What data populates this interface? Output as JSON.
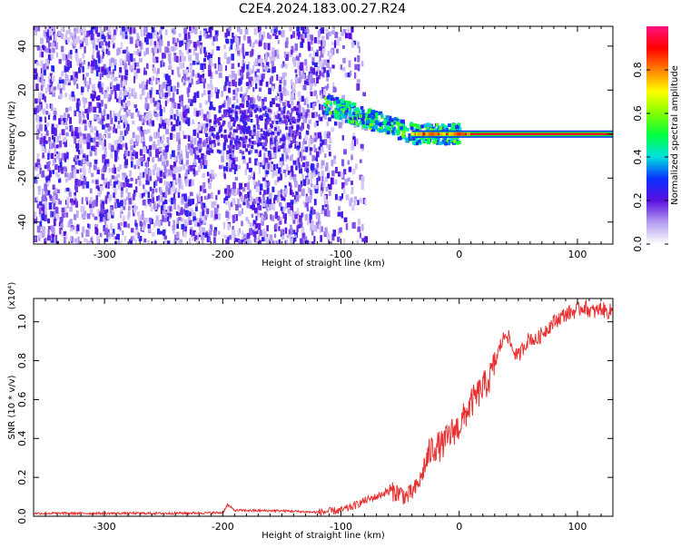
{
  "title": "C2E4.2024.183.00.27.R24",
  "chart_data": [
    {
      "type": "heatmap",
      "xlabel": "Height of straight line (km)",
      "ylabel": "Frequency (Hz)",
      "xlim": [
        -360,
        130
      ],
      "ylim": [
        -50,
        49
      ],
      "xticks": [
        -300,
        -200,
        -100,
        0,
        100
      ],
      "yticks": [
        -40,
        -20,
        0,
        20,
        40
      ],
      "colorbar": {
        "label": "Normalized spectral amplitude",
        "range": [
          0,
          1
        ],
        "ticks": [
          0.0,
          0.2,
          0.4,
          0.6,
          0.8
        ],
        "colors": [
          "#ffffff",
          "#b39cf0",
          "#5a10e0",
          "#0a30ff",
          "#00e0e0",
          "#00ff40",
          "#80ff00",
          "#ffff00",
          "#ff8000",
          "#ff0000",
          "#ff1080"
        ]
      },
      "features": {
        "noise_region_km": [
          -360,
          -90
        ],
        "strong_line_km": [
          -40,
          130
        ],
        "line_frequency_hz": 0,
        "transition_km": [
          -115,
          -40
        ]
      }
    },
    {
      "type": "line",
      "xlabel": "Height of straight line (km)",
      "ylabel": "SNR (10 * v/v)",
      "y_multiplier": "(x10⁴)",
      "xlim": [
        -360,
        130
      ],
      "ylim": [
        0,
        1.12
      ],
      "xticks": [
        -300,
        -200,
        -100,
        0,
        100
      ],
      "yticks": [
        0.0,
        0.2,
        0.4,
        0.6,
        0.8,
        1.0
      ],
      "line_color": "#e83030",
      "series": [
        {
          "x": [
            -360,
            -300,
            -250,
            -200,
            -196,
            -190,
            -150,
            -120,
            -100,
            -90,
            -80,
            -70,
            -60,
            -50,
            -45,
            -40,
            -36,
            -32,
            -28,
            -24,
            -20,
            -15,
            -10,
            -5,
            0,
            5,
            10,
            15,
            20,
            25,
            30,
            35,
            40,
            45,
            50,
            55,
            60,
            65,
            70,
            75,
            80,
            85,
            90,
            95,
            100,
            105,
            110,
            115,
            120,
            125,
            130
          ],
          "y": [
            0.015,
            0.015,
            0.015,
            0.018,
            0.06,
            0.03,
            0.028,
            0.02,
            0.03,
            0.05,
            0.08,
            0.1,
            0.13,
            0.12,
            0.1,
            0.12,
            0.15,
            0.2,
            0.28,
            0.34,
            0.36,
            0.36,
            0.4,
            0.44,
            0.46,
            0.52,
            0.58,
            0.62,
            0.66,
            0.7,
            0.78,
            0.88,
            0.95,
            0.86,
            0.82,
            0.88,
            0.92,
            0.9,
            0.94,
            0.97,
            1.0,
            1.02,
            1.04,
            1.05,
            1.06,
            1.08,
            1.06,
            1.05,
            1.07,
            1.05,
            1.06
          ]
        }
      ]
    }
  ]
}
